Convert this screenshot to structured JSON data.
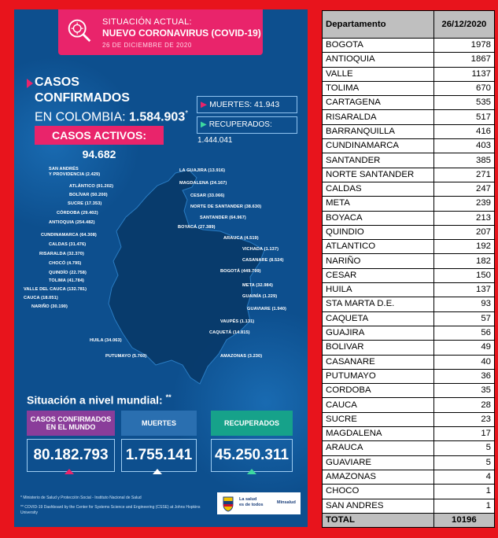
{
  "infographic": {
    "header": {
      "line1": "SITUACIÓN ACTUAL:",
      "line2": "NUEVO CORONAVIRUS (COVID-19)",
      "date": "26 DE DICIEMBRE DE 2020"
    },
    "casos": {
      "line1": "CASOS",
      "line2": "CONFIRMADOS",
      "line3_prefix": "EN COLOMBIA:",
      "line3_value": "1.584.903",
      "line3_mark": "*",
      "activos": "CASOS ACTIVOS: 94.682"
    },
    "muertes": "MUERTES: 41.943",
    "recuperados": "RECUPERADOS: 1.444.041",
    "map_labels": [
      {
        "text": "SAN ANDRÉS\nY PROVIDENCIA (2.429)"
      },
      {
        "text": "ATLÁNTICO (91.202)"
      },
      {
        "text": "BOLÍVAR (50.200)"
      },
      {
        "text": "SUCRE (17.353)"
      },
      {
        "text": "CÓRDOBA (29.402)"
      },
      {
        "text": "ANTIOQUIA (254.482)"
      },
      {
        "text": "CUNDINAMARCA (64.308)"
      },
      {
        "text": "CALDAS (31.476)"
      },
      {
        "text": "RISARALDA (32.370)"
      },
      {
        "text": "CHOCÓ (4.795)"
      },
      {
        "text": "QUINDÍO (22.758)"
      },
      {
        "text": "TOLIMA (41.784)"
      },
      {
        "text": "VALLE DEL CAUCA (132.781)"
      },
      {
        "text": "CAUCA (18.051)"
      },
      {
        "text": "NARIÑO (30.190)"
      },
      {
        "text": "LA GUAJIRA (13.916)"
      },
      {
        "text": "MAGDALENA (24.167)"
      },
      {
        "text": "CESAR (33.066)"
      },
      {
        "text": "NORTE DE SANTANDER (38.630)"
      },
      {
        "text": "SANTANDER (64.967)"
      },
      {
        "text": "BOYACÁ (27.389)"
      },
      {
        "text": "ARAUCA (4.519)"
      },
      {
        "text": "VICHADA (1.137)"
      },
      {
        "text": "CASANARE (8.524)"
      },
      {
        "text": "BOGOTÁ (449.799)"
      },
      {
        "text": "META (32.984)"
      },
      {
        "text": "GUAINÍA (1.229)"
      },
      {
        "text": "GUAVIARE (1.940)"
      },
      {
        "text": "VAUPÉS (1.131)"
      },
      {
        "text": "CAQUETÁ (14.815)"
      },
      {
        "text": "HUILA (34.063)"
      },
      {
        "text": "PUTUMAYO (5.760)"
      },
      {
        "text": "AMAZONAS (3.230)"
      }
    ],
    "mundial": {
      "title": "Situación a nivel mundial:",
      "title_mark": "**",
      "confirmados_head": "CASOS CONFIRMADOS\nEN EL MUNDO",
      "confirmados_val": "80.182.793",
      "muertes_head": "MUERTES",
      "muertes_val": "1.755.141",
      "recuperados_head": "RECUPERADOS",
      "recuperados_val": "45.250.311"
    },
    "footnote1": "* Ministerio de Salud y Protección Social - Instituto Nacional de Salud",
    "footnote2": "** COVID-19 Dashboard by the Center for Systems Science and Engineering (CSSE) at Johns Hopkins University",
    "logo_text": "La salud\nes de todos",
    "logo_minsalud": "Minsalud",
    "colors": {
      "pink": "#e9246b",
      "purple": "#8a3d9a",
      "teal": "#16a28a",
      "blue": "#2a6fb0",
      "bg": "#0d4f8e"
    }
  },
  "table": {
    "headers": [
      "Departamento",
      "26/12/2020"
    ],
    "rows": [
      [
        "BOGOTA",
        "1978"
      ],
      [
        "ANTIOQUIA",
        "1867"
      ],
      [
        "VALLE",
        "1137"
      ],
      [
        "TOLIMA",
        "670"
      ],
      [
        "CARTAGENA",
        "535"
      ],
      [
        "RISARALDA",
        "517"
      ],
      [
        "BARRANQUILLA",
        "416"
      ],
      [
        "CUNDINAMARCA",
        "403"
      ],
      [
        "SANTANDER",
        "385"
      ],
      [
        "NORTE SANTANDER",
        "271"
      ],
      [
        "CALDAS",
        "247"
      ],
      [
        "META",
        "239"
      ],
      [
        "BOYACA",
        "213"
      ],
      [
        "QUINDIO",
        "207"
      ],
      [
        "ATLANTICO",
        "192"
      ],
      [
        "NARIÑO",
        "182"
      ],
      [
        "CESAR",
        "150"
      ],
      [
        "HUILA",
        "137"
      ],
      [
        "STA MARTA D.E.",
        "93"
      ],
      [
        "CAQUETA",
        "57"
      ],
      [
        "GUAJIRA",
        "56"
      ],
      [
        "BOLIVAR",
        "49"
      ],
      [
        "CASANARE",
        "40"
      ],
      [
        "PUTUMAYO",
        "36"
      ],
      [
        "CORDOBA",
        "35"
      ],
      [
        "CAUCA",
        "28"
      ],
      [
        "SUCRE",
        "23"
      ],
      [
        "MAGDALENA",
        "17"
      ],
      [
        "ARAUCA",
        "5"
      ],
      [
        "GUAVIARE",
        "5"
      ],
      [
        "AMAZONAS",
        "4"
      ],
      [
        "CHOCO",
        "1"
      ],
      [
        "SAN ANDRES",
        "1"
      ]
    ],
    "total_label": "TOTAL",
    "total_value": "10196"
  }
}
